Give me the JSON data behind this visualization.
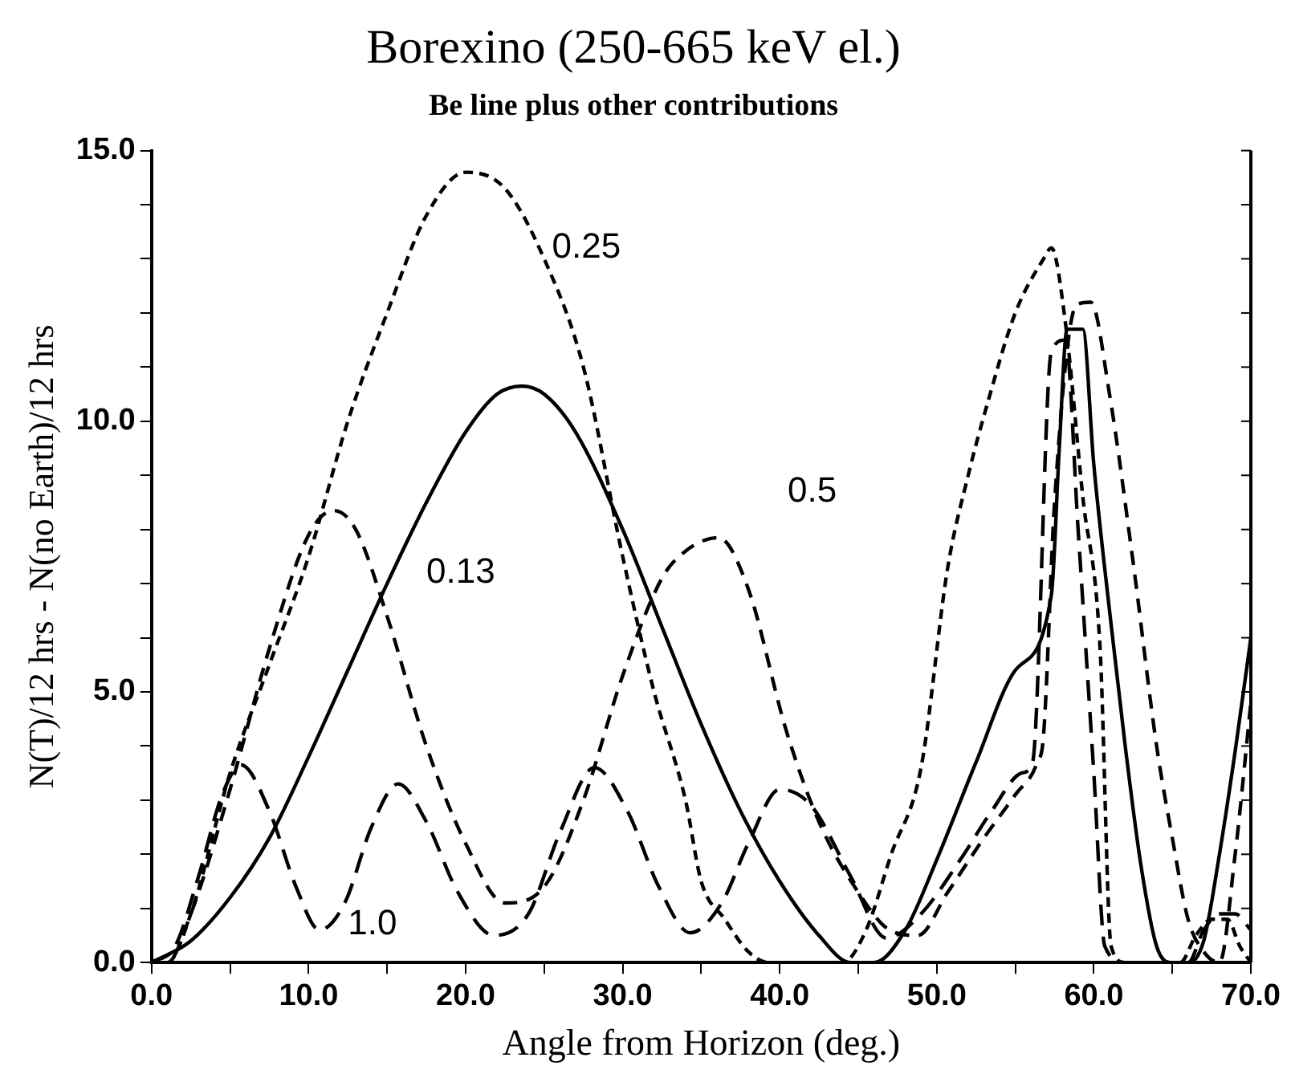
{
  "chart_data": {
    "type": "line",
    "title": "Borexino (250-665 keV el.)",
    "subtitle": "Be line plus other contributions",
    "xlabel": "Angle from Horizon (deg.)",
    "ylabel": "N(T)/12 hrs - N(no Earth)/12 hrs",
    "xlim": [
      0,
      70
    ],
    "ylim": [
      0,
      15
    ],
    "xticks": [
      {
        "value": 0,
        "label": "0.0"
      },
      {
        "value": 5,
        "label": null
      },
      {
        "value": 10,
        "label": "10.0"
      },
      {
        "value": 15,
        "label": null
      },
      {
        "value": 20,
        "label": "20.0"
      },
      {
        "value": 25,
        "label": null
      },
      {
        "value": 30,
        "label": "30.0"
      },
      {
        "value": 35,
        "label": null
      },
      {
        "value": 40,
        "label": "40.0"
      },
      {
        "value": 45,
        "label": null
      },
      {
        "value": 50,
        "label": "50.0"
      },
      {
        "value": 55,
        "label": null
      },
      {
        "value": 60,
        "label": "60.0"
      },
      {
        "value": 65,
        "label": null
      },
      {
        "value": 70,
        "label": "70.0"
      }
    ],
    "yticks": [
      {
        "value": 0,
        "label": "0.0"
      },
      {
        "value": 1,
        "label": null
      },
      {
        "value": 2,
        "label": null
      },
      {
        "value": 3,
        "label": null
      },
      {
        "value": 4,
        "label": null
      },
      {
        "value": 5,
        "label": "5.0"
      },
      {
        "value": 6,
        "label": null
      },
      {
        "value": 7,
        "label": null
      },
      {
        "value": 8,
        "label": null
      },
      {
        "value": 9,
        "label": null
      },
      {
        "value": 10,
        "label": "10.0"
      },
      {
        "value": 11,
        "label": null
      },
      {
        "value": 12,
        "label": null
      },
      {
        "value": 13,
        "label": null
      },
      {
        "value": 14,
        "label": null
      },
      {
        "value": 15,
        "label": "15.0"
      }
    ],
    "grid": false,
    "legend": false,
    "marker": "none",
    "series": [
      {
        "name": "0.13",
        "color": "#000000",
        "line_style": "solid",
        "x": [
          0,
          2.5,
          5,
          7.5,
          10,
          12.5,
          15,
          17.5,
          20,
          22,
          23.6,
          25,
          27,
          30,
          32.5,
          35,
          37.5,
          40,
          42.5,
          44.5,
          46,
          48,
          50,
          52.5,
          55,
          57.3,
          57.8,
          58.3,
          59.3,
          60,
          61,
          62,
          63,
          64,
          65,
          66,
          67,
          68,
          69,
          70
        ],
        "values": [
          0,
          0.4,
          1.2,
          2.3,
          3.8,
          5.4,
          7,
          8.5,
          9.8,
          10.5,
          10.65,
          10.5,
          9.8,
          8,
          6.2,
          4.4,
          2.8,
          1.5,
          0.5,
          0,
          0,
          0.6,
          1.9,
          3.7,
          5.4,
          6.8,
          9.5,
          11.7,
          11.7,
          9.2,
          6.5,
          4,
          1.8,
          0.3,
          0,
          0,
          0.4,
          2,
          3.9,
          6
        ]
      },
      {
        "name": "0.25",
        "color": "#000000",
        "line_style": "dashed",
        "x": [
          0,
          1,
          2.5,
          5,
          7.5,
          10,
          12.5,
          15,
          17.5,
          20,
          22.5,
          25,
          27.5,
          30,
          32,
          34,
          35,
          36.5,
          38,
          39.3,
          40.5,
          42,
          44,
          45.5,
          47.1,
          49,
          50.7,
          52,
          53.2,
          55,
          56.8,
          57.3,
          58.2,
          59.3,
          60.4,
          61.1,
          62,
          64,
          65.5,
          66.5,
          67.5,
          68.5,
          69.3,
          70
        ],
        "values": [
          0,
          0,
          0.9,
          3.5,
          5.5,
          7.5,
          10,
          12,
          13.8,
          14.6,
          14.3,
          13,
          11,
          7.5,
          5,
          3,
          1.5,
          0.8,
          0.2,
          0,
          0,
          0,
          0,
          0.6,
          2,
          3.6,
          7.3,
          9,
          10.3,
          12,
          13,
          13.2,
          11.8,
          8.6,
          5.8,
          0.3,
          0,
          0,
          0,
          0.5,
          0.8,
          0.8,
          0.3,
          0
        ]
      },
      {
        "name": "0.5",
        "color": "#000000",
        "line_style": "dashed",
        "x": [
          0,
          1,
          2.5,
          5,
          7.5,
          10,
          11.6,
          13,
          15,
          17.5,
          20,
          22.5,
          25,
          27.5,
          30,
          32.5,
          34,
          36.1,
          38,
          40.4,
          42.5,
          45,
          47,
          48.8,
          50.7,
          53,
          55,
          56.4,
          56.8,
          57.5,
          58.9,
          59.8,
          61,
          62.5,
          64,
          65,
          66,
          67,
          68,
          69,
          70
        ],
        "values": [
          0,
          0,
          0.9,
          3.2,
          5.8,
          7.9,
          8.35,
          8,
          6.4,
          4,
          2.2,
          1.1,
          1.4,
          3,
          5.3,
          7.1,
          7.6,
          7.85,
          6.9,
          4.3,
          2.6,
          1.3,
          0.6,
          0.5,
          1.3,
          2.3,
          3.1,
          3.7,
          4.2,
          8.5,
          12.15,
          12.2,
          10.5,
          7.4,
          4,
          2.3,
          0.8,
          0.2,
          0,
          2,
          4.8
        ]
      },
      {
        "name": "1.0",
        "color": "#000000",
        "line_style": "dashed",
        "x": [
          0,
          1.5,
          3,
          4.5,
          5.7,
          7.5,
          9.2,
          10.7,
          12.3,
          14,
          15.7,
          17.5,
          19.5,
          21.8,
          24,
          26,
          28.2,
          30.3,
          32.3,
          34.3,
          36.3,
          38,
          40,
          42,
          44.5,
          46.8,
          49,
          51.5,
          53.5,
          55.4,
          56.1,
          57.3,
          58.2,
          59,
          60,
          60.7,
          62,
          64,
          66,
          67,
          68,
          69,
          70
        ],
        "values": [
          0,
          0.3,
          1.6,
          3.1,
          3.65,
          2.8,
          1.4,
          0.6,
          1.1,
          2.5,
          3.3,
          2.6,
          1.3,
          0.5,
          0.9,
          2.4,
          3.6,
          2.8,
          1.4,
          0.55,
          1.1,
          2.2,
          3.2,
          2.9,
          1.6,
          0.45,
          0.9,
          1.9,
          2.8,
          3.5,
          3.7,
          11.3,
          11.5,
          8,
          3.5,
          0.3,
          0,
          0,
          0,
          0.6,
          0.9,
          0.9,
          0.6
        ]
      }
    ]
  }
}
